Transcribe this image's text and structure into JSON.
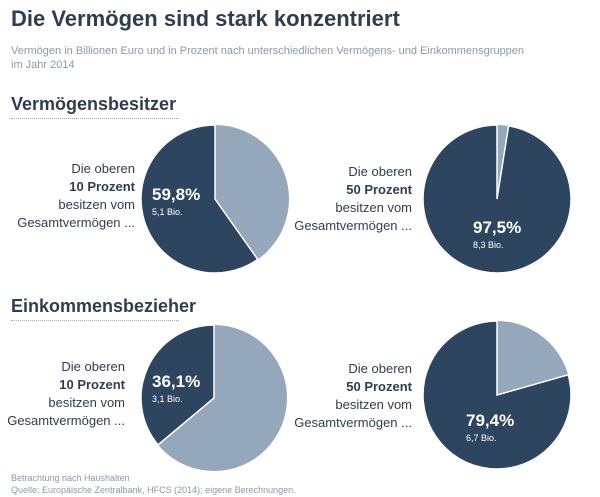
{
  "title": "Die Vermögen sind stark konzentriert",
  "subtitle_line1": "Vermögen in Billionen Euro und in Prozent nach unterschiedlichen Vermögens- und Einkommensgruppen",
  "subtitle_line2": "im Jahr 2014",
  "sections": {
    "vermoegen": "Vermögensbesitzer",
    "einkommen": "Einkommensbezieher"
  },
  "desc": {
    "line1": "Die oberen",
    "line3": "besitzen vom",
    "line4": "Gesamtvermögen ...",
    "group10": "10 Prozent",
    "group50": "50 Prozent"
  },
  "colors": {
    "dark": "#2e4560",
    "light": "#95a8bb"
  },
  "chart_data": [
    {
      "type": "pie",
      "group": "Vermögensbesitzer",
      "share_label": "10 Prozent",
      "value": 59.8,
      "label": "59,8%",
      "sublabel": "5,1 Bio."
    },
    {
      "type": "pie",
      "group": "Vermögensbesitzer",
      "share_label": "50 Prozent",
      "value": 97.5,
      "label": "97,5%",
      "sublabel": "8,3 Bio."
    },
    {
      "type": "pie",
      "group": "Einkommensbezieher",
      "share_label": "10 Prozent",
      "value": 36.1,
      "label": "36,1%",
      "sublabel": "3,1 Bio."
    },
    {
      "type": "pie",
      "group": "Einkommensbezieher",
      "share_label": "50 Prozent",
      "value": 79.4,
      "label": "79,4%",
      "sublabel": "6,7 Bio."
    }
  ],
  "footer_line1": "Betrachtung nach Haushalten",
  "footer_line2": "Quelle: Europäische Zentralbank, HFCS (2014); eigene Berechnungen."
}
